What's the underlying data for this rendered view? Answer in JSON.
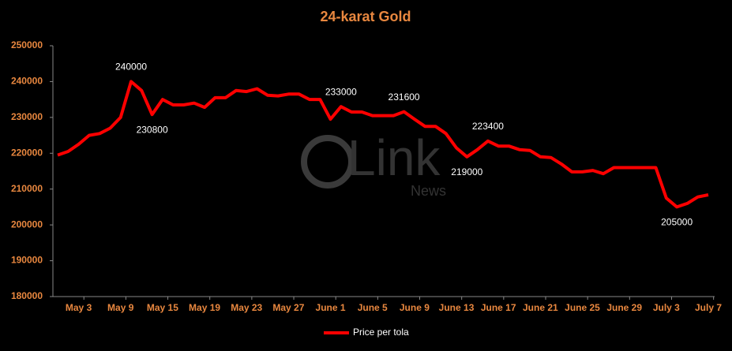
{
  "chart_data": {
    "type": "line",
    "title": "24-karat Gold",
    "categories": [
      null,
      null,
      "May 3",
      null,
      null,
      null,
      "May 9",
      null,
      null,
      null,
      "May 15",
      null,
      null,
      null,
      "May 19",
      null,
      null,
      null,
      "May 23",
      null,
      null,
      null,
      "May 27",
      null,
      null,
      null,
      "June 1",
      null,
      null,
      null,
      "June 5",
      null,
      null,
      null,
      "June 9",
      null,
      null,
      null,
      "June 13",
      null,
      null,
      null,
      "June 17",
      null,
      null,
      null,
      "June 21",
      null,
      null,
      null,
      "June 25",
      null,
      null,
      null,
      "June 29",
      null,
      null,
      null,
      "July 3",
      null,
      null,
      null,
      "July 7"
    ],
    "series": [
      {
        "name": "Price per tola",
        "color": "#ff0000",
        "values": [
          219500,
          220500,
          222500,
          225000,
          225500,
          227000,
          230000,
          240000,
          237500,
          230800,
          235000,
          233500,
          233500,
          234000,
          232800,
          235500,
          235500,
          237500,
          237200,
          238000,
          236200,
          236000,
          236500,
          236500,
          235000,
          235000,
          229500,
          233000,
          231500,
          231500,
          230500,
          230500,
          230500,
          231600,
          229500,
          227500,
          227500,
          225500,
          221500,
          219000,
          221000,
          223400,
          222000,
          222000,
          221000,
          220800,
          219000,
          218800,
          217000,
          214800,
          214800,
          215200,
          214300,
          216000,
          216000,
          216000,
          216000,
          216000,
          207500,
          205000,
          206000,
          207800,
          208400
        ],
        "value_labels": [
          null,
          null,
          null,
          null,
          null,
          null,
          null,
          "240000",
          null,
          "230800",
          null,
          null,
          null,
          null,
          null,
          null,
          null,
          null,
          null,
          null,
          null,
          null,
          null,
          null,
          null,
          null,
          null,
          "233000",
          null,
          null,
          null,
          null,
          null,
          "231600",
          null,
          null,
          null,
          null,
          null,
          "219000",
          null,
          "223400",
          null,
          null,
          null,
          null,
          null,
          null,
          null,
          null,
          null,
          null,
          null,
          null,
          null,
          null,
          null,
          null,
          null,
          "205000",
          null,
          null,
          null
        ]
      }
    ],
    "ylim": [
      180000,
      250000
    ],
    "yticks": [
      180000,
      190000,
      200000,
      210000,
      220000,
      230000,
      240000,
      250000
    ],
    "grid": false,
    "legend": "bottom"
  },
  "watermark": {
    "text": "Link",
    "subtext": "News"
  }
}
